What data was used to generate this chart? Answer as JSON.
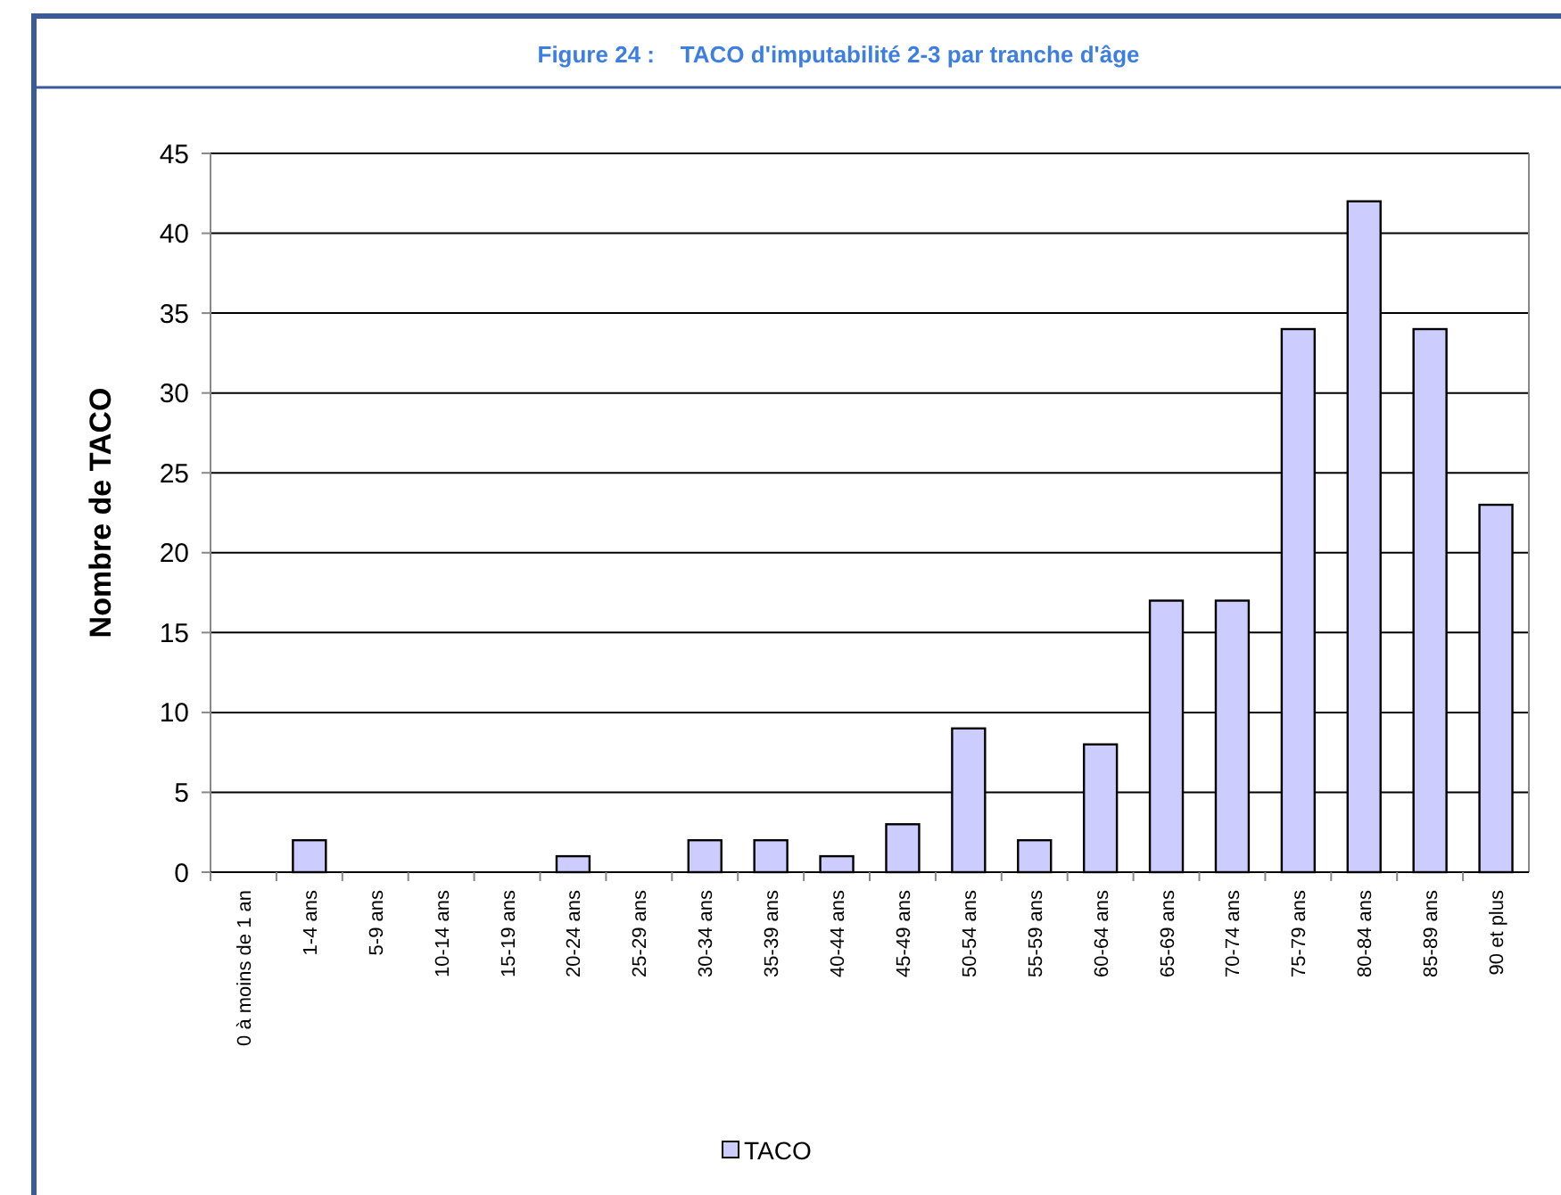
{
  "chart_data": {
    "type": "bar",
    "title": "Figure 24 :    TACO d'imputabilité 2-3 par tranche d'âge",
    "ylabel": "Nombre de TACO",
    "categories": [
      "0 à moins de 1 an",
      "1-4 ans",
      "5-9 ans",
      "10-14 ans",
      "15-19 ans",
      "20-24 ans",
      "25-29 ans",
      "30-34 ans",
      "35-39 ans",
      "40-44 ans",
      "45-49 ans",
      "50-54 ans",
      "55-59 ans",
      "60-64 ans",
      "65-69 ans",
      "70-74 ans",
      "75-79 ans",
      "80-84 ans",
      "85-89 ans",
      "90 et plus"
    ],
    "series": [
      {
        "name": "TACO",
        "color": "#ccccff",
        "values": [
          0,
          2,
          0,
          0,
          0,
          1,
          0,
          2,
          2,
          1,
          3,
          9,
          2,
          8,
          17,
          17,
          34,
          42,
          34,
          23
        ]
      }
    ],
    "ylim": [
      0,
      45
    ],
    "yticks": [
      0,
      5,
      10,
      15,
      20,
      25,
      30,
      35,
      40,
      45
    ],
    "grid": "y",
    "legend": "bottom"
  }
}
